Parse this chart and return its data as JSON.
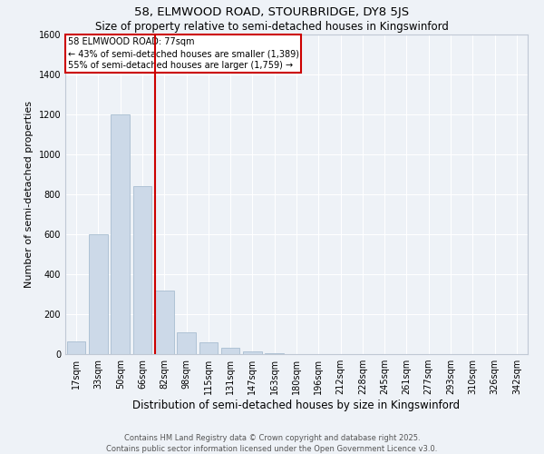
{
  "title1": "58, ELMWOOD ROAD, STOURBRIDGE, DY8 5JS",
  "title2": "Size of property relative to semi-detached houses in Kingswinford",
  "xlabel": "Distribution of semi-detached houses by size in Kingswinford",
  "ylabel": "Number of semi-detached properties",
  "bar_labels": [
    "17sqm",
    "33sqm",
    "50sqm",
    "66sqm",
    "82sqm",
    "98sqm",
    "115sqm",
    "131sqm",
    "147sqm",
    "163sqm",
    "180sqm",
    "196sqm",
    "212sqm",
    "228sqm",
    "245sqm",
    "261sqm",
    "277sqm",
    "293sqm",
    "310sqm",
    "326sqm",
    "342sqm"
  ],
  "bar_values": [
    65,
    600,
    1200,
    840,
    320,
    110,
    60,
    30,
    12,
    3,
    0,
    0,
    0,
    0,
    0,
    0,
    0,
    0,
    0,
    0,
    0
  ],
  "bar_color": "#ccd9e8",
  "bar_edge_color": "#a8bdd0",
  "vline_color": "#cc0000",
  "vline_pos": 3.575,
  "ylim": [
    0,
    1600
  ],
  "yticks": [
    0,
    200,
    400,
    600,
    800,
    1000,
    1200,
    1400,
    1600
  ],
  "annotation_title": "58 ELMWOOD ROAD: 77sqm",
  "annotation_line1": "← 43% of semi-detached houses are smaller (1,389)",
  "annotation_line2": "55% of semi-detached houses are larger (1,759) →",
  "footer1": "Contains HM Land Registry data © Crown copyright and database right 2025.",
  "footer2": "Contains public sector information licensed under the Open Government Licence v3.0.",
  "bg_color": "#eef2f7",
  "grid_color": "#ffffff",
  "box_edge_color": "#cc0000",
  "title1_fontsize": 9.5,
  "title2_fontsize": 8.5,
  "ylabel_fontsize": 8,
  "xlabel_fontsize": 8.5,
  "tick_fontsize": 7,
  "annotation_fontsize": 7,
  "footer_fontsize": 6
}
